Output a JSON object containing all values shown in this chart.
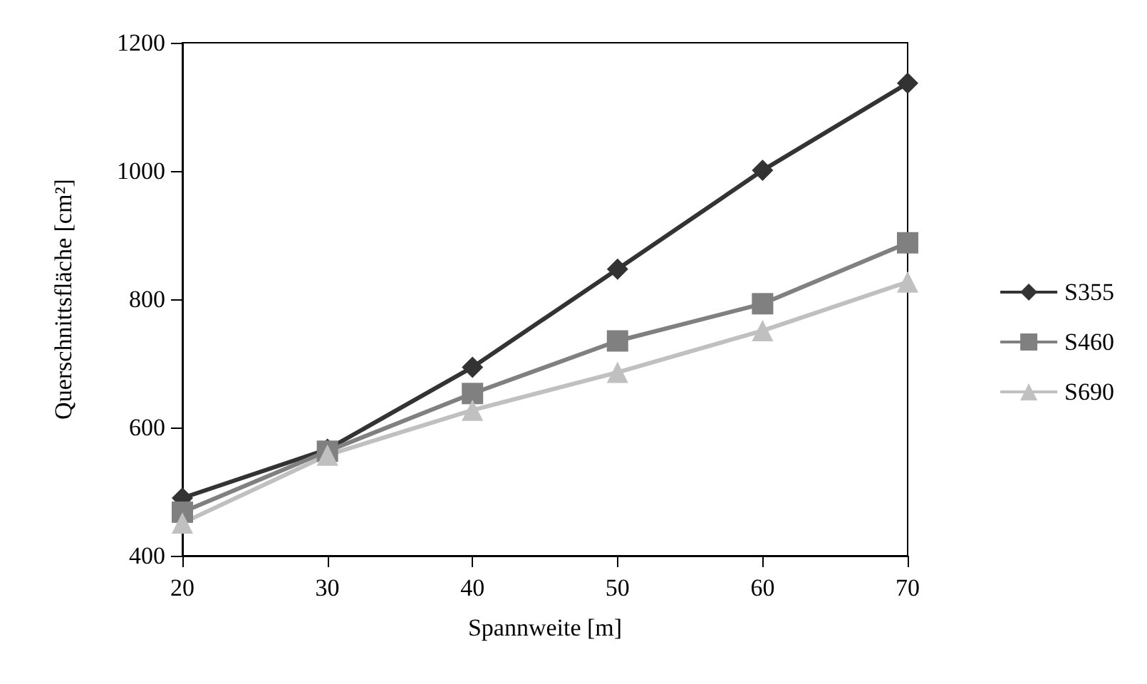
{
  "chart_data": {
    "type": "line",
    "xlabel": "Spannweite [m]",
    "ylabel": "Querschnittsfläche [cm²]",
    "x": [
      20,
      30,
      40,
      50,
      60,
      70
    ],
    "series": [
      {
        "name": "S355",
        "color": "#333333",
        "marker": "diamond",
        "values": [
          490,
          566,
          694,
          847,
          1001,
          1137
        ]
      },
      {
        "name": "S460",
        "color": "#808080",
        "marker": "square",
        "values": [
          468,
          563,
          653,
          735,
          793,
          888
        ]
      },
      {
        "name": "S690",
        "color": "#c0c0c0",
        "marker": "triangle",
        "values": [
          451,
          557,
          627,
          686,
          751,
          827
        ]
      }
    ],
    "xlim": [
      20,
      70
    ],
    "xticks": [
      20,
      30,
      40,
      50,
      60,
      70
    ],
    "ylim": [
      400,
      1200
    ],
    "yticks": [
      400,
      600,
      800,
      1000,
      1200
    ],
    "grid": false,
    "legend": "right",
    "line_style": "solid"
  }
}
